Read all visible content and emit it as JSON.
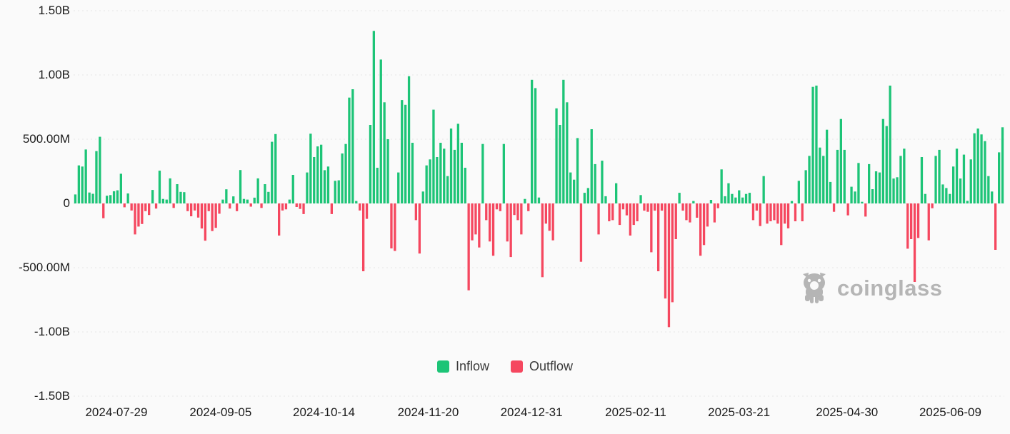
{
  "chart_data": {
    "type": "bar",
    "title": "",
    "value_unit": "USD millions",
    "positive_series_label": "Inflow",
    "negative_series_label": "Outflow",
    "ylim": [
      -1500,
      1500
    ],
    "grid": true,
    "legend_position": "bottom-center",
    "y_ticks": [
      {
        "label": "1.50B",
        "value": 1500
      },
      {
        "label": "1.00B",
        "value": 1000
      },
      {
        "label": "500.00M",
        "value": 500
      },
      {
        "label": "0",
        "value": 0
      },
      {
        "label": "-500.00M",
        "value": -500
      },
      {
        "label": "-1.00B",
        "value": -1000
      },
      {
        "label": "-1.50B",
        "value": -1500
      }
    ],
    "x_tick_labels": [
      {
        "label": "2024-07-29",
        "position": 0.046
      },
      {
        "label": "2024-09-05",
        "position": 0.158
      },
      {
        "label": "2024-10-14",
        "position": 0.269
      },
      {
        "label": "2024-11-20",
        "position": 0.381
      },
      {
        "label": "2024-12-31",
        "position": 0.492
      },
      {
        "label": "2025-02-11",
        "position": 0.604
      },
      {
        "label": "2025-03-21",
        "position": 0.715
      },
      {
        "label": "2025-04-30",
        "position": 0.831
      },
      {
        "label": "2025-06-09",
        "position": 0.942
      }
    ],
    "values_millions": [
      70,
      296,
      287,
      420,
      85,
      75,
      407,
      519,
      -115,
      60,
      65,
      95,
      102,
      231,
      -30,
      78,
      -55,
      -241,
      -180,
      -160,
      -60,
      -90,
      105,
      -40,
      255,
      35,
      30,
      195,
      -35,
      150,
      90,
      88,
      -60,
      -100,
      -55,
      -110,
      -195,
      -290,
      -60,
      -215,
      -190,
      -80,
      30,
      110,
      -40,
      55,
      -60,
      260,
      35,
      30,
      -25,
      45,
      195,
      -35,
      150,
      90,
      480,
      540,
      -250,
      -55,
      -46,
      30,
      222,
      -28,
      -43,
      -83,
      241,
      543,
      361,
      444,
      457,
      259,
      287,
      -83,
      176,
      180,
      389,
      463,
      824,
      889,
      19,
      -55,
      -528,
      -120,
      611,
      1343,
      278,
      1120,
      787,
      500,
      -350,
      -370,
      241,
      805,
      768,
      990,
      472,
      -130,
      -390,
      93,
      296,
      343,
      730,
      361,
      472,
      426,
      213,
      583,
      417,
      620,
      472,
      278,
      -676,
      -287,
      -241,
      -343,
      463,
      -130,
      -296,
      -407,
      -46,
      -60,
      463,
      -296,
      -417,
      -90,
      -130,
      -241,
      35,
      -60,
      962,
      898,
      46,
      -574,
      -157,
      -213,
      -287,
      740,
      611,
      962,
      787,
      241,
      185,
      509,
      -454,
      83,
      120,
      578,
      306,
      -241,
      333,
      56,
      -139,
      -130,
      157,
      -167,
      -46,
      -93,
      -250,
      -167,
      -139,
      65,
      -56,
      -65,
      -380,
      -56,
      -528,
      -56,
      -740,
      -963,
      -769,
      -278,
      83,
      -56,
      -130,
      -148,
      19,
      -111,
      -407,
      -324,
      -180,
      28,
      -148,
      -37,
      265,
      56,
      157,
      74,
      46,
      102,
      46,
      74,
      83,
      -130,
      -56,
      -176,
      213,
      -157,
      -139,
      -130,
      -157,
      -324,
      -157,
      -194,
      19,
      -139,
      176,
      -139,
      259,
      370,
      907,
      917,
      435,
      370,
      574,
      167,
      -65,
      417,
      657,
      417,
      -93,
      130,
      93,
      315,
      13,
      -102,
      306,
      111,
      250,
      241,
      657,
      602,
      917,
      194,
      204,
      370,
      426,
      -352,
      -278,
      -611,
      -269,
      361,
      74,
      -287,
      -37,
      370,
      417,
      148,
      120,
      74,
      287,
      426,
      194,
      380,
      20,
      343,
      546,
      583,
      537,
      485,
      213,
      93,
      -361,
      398,
      593
    ]
  },
  "legend": {
    "inflow_label": "Inflow",
    "outflow_label": "Outflow"
  },
  "watermark": {
    "text": "coinglass",
    "icon": "coinglass-bear-icon"
  },
  "colors": {
    "inflow": "#1dc477",
    "outflow": "#f5475f",
    "grid": "#e7e7e7",
    "axis_text": "#1b1b1b",
    "background": "#fafafa",
    "watermark": "#b5b5b5"
  }
}
